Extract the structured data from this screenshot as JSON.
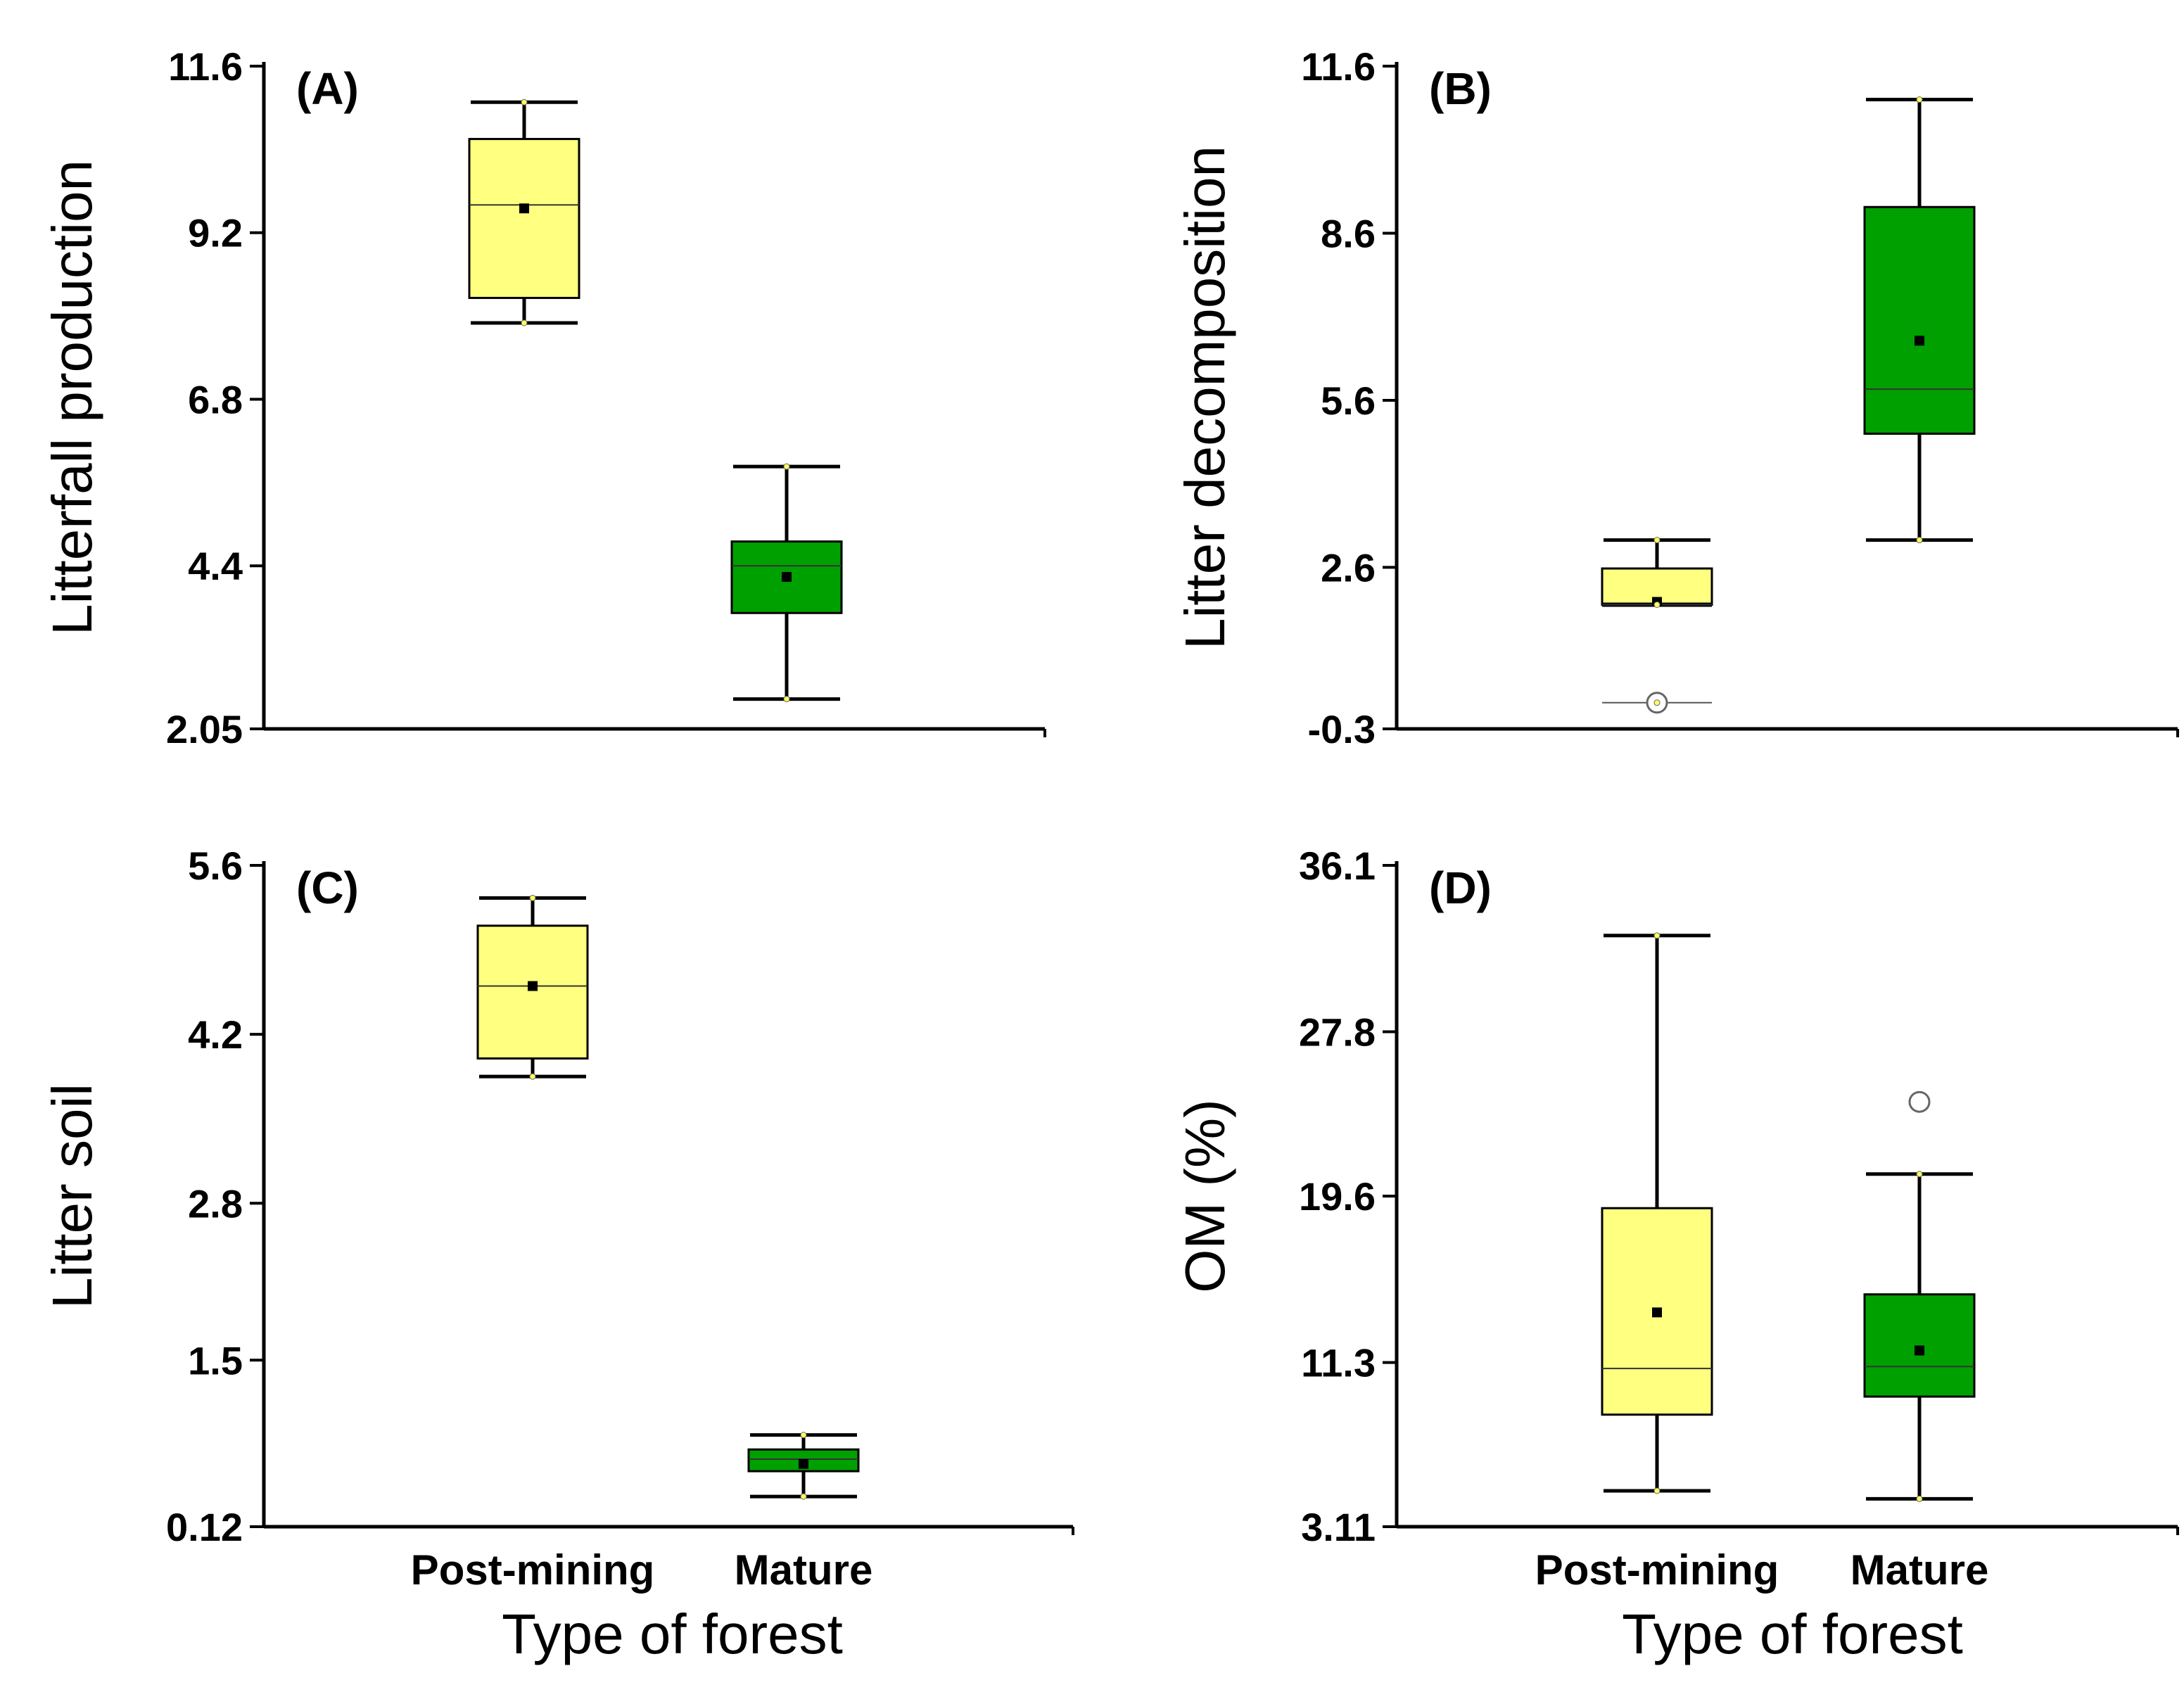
{
  "chart_data": [
    {
      "type": "box",
      "panel": "(A)",
      "title": "",
      "ylabel": "Litterfall production",
      "xlabel": "",
      "categories": [
        "Post-mining",
        "Mature"
      ],
      "show_category_labels": false,
      "ylim": [
        2.05,
        11.6
      ],
      "yticks": [
        2.05,
        4.4,
        6.8,
        9.2,
        11.6
      ],
      "ytick_labels": [
        "2.05",
        "4.4",
        "6.8",
        "9.2",
        "11.6"
      ],
      "boxes": [
        {
          "category": "Post-mining",
          "color": "#ffff80",
          "whisker_low": 7.9,
          "q1": 8.26,
          "median": 9.6,
          "q3": 10.55,
          "whisker_high": 11.08,
          "mean": 9.55,
          "outliers": []
        },
        {
          "category": "Mature",
          "color": "#00a000",
          "whisker_low": 2.48,
          "q1": 3.72,
          "median": 4.4,
          "q3": 4.75,
          "whisker_high": 5.83,
          "mean": 4.24,
          "outliers": []
        }
      ]
    },
    {
      "type": "box",
      "panel": "(B)",
      "title": "",
      "ylabel": "Litter decomposition",
      "xlabel": "",
      "categories": [
        "Post-mining",
        "Mature"
      ],
      "show_category_labels": false,
      "ylim": [
        -0.3,
        11.6
      ],
      "yticks": [
        -0.3,
        2.6,
        5.6,
        8.6,
        11.6
      ],
      "ytick_labels": [
        "-0.3",
        "2.6",
        "5.6",
        "8.6",
        "11.6"
      ],
      "boxes": [
        {
          "category": "Post-mining",
          "color": "#ffff80",
          "whisker_low": 1.93,
          "q1": 1.93,
          "median": 1.93,
          "q3": 2.58,
          "whisker_high": 3.09,
          "mean": 1.98,
          "outliers": [
            0.17
          ]
        },
        {
          "category": "Mature",
          "color": "#00a000",
          "whisker_low": 3.09,
          "q1": 5.0,
          "median": 5.8,
          "q3": 9.07,
          "whisker_high": 11.0,
          "mean": 6.67,
          "outliers": []
        }
      ]
    },
    {
      "type": "box",
      "panel": "(C)",
      "title": "",
      "ylabel": "Litter soil",
      "xlabel": "Type of forest",
      "categories": [
        "Post-mining",
        "Mature"
      ],
      "show_category_labels": true,
      "ylim": [
        0.12,
        5.6
      ],
      "yticks": [
        0.12,
        1.5,
        2.8,
        4.2,
        5.6
      ],
      "ytick_labels": [
        "0.12",
        "1.5",
        "2.8",
        "4.2",
        "5.6"
      ],
      "boxes": [
        {
          "category": "Post-mining",
          "color": "#ffff80",
          "whisker_low": 3.85,
          "q1": 4.0,
          "median": 4.6,
          "q3": 5.1,
          "whisker_high": 5.33,
          "mean": 4.6,
          "outliers": []
        },
        {
          "category": "Mature",
          "color": "#00a000",
          "whisker_low": 0.37,
          "q1": 0.58,
          "median": 0.68,
          "q3": 0.76,
          "whisker_high": 0.88,
          "mean": 0.64,
          "outliers": []
        }
      ]
    },
    {
      "type": "box",
      "panel": "(D)",
      "title": "",
      "ylabel": "OM (%)",
      "xlabel": "Type of forest",
      "categories": [
        "Post-mining",
        "Mature"
      ],
      "show_category_labels": true,
      "ylim": [
        3.11,
        36.1
      ],
      "yticks": [
        3.11,
        11.3,
        19.6,
        27.8,
        36.1
      ],
      "ytick_labels": [
        "3.11",
        "11.3",
        "19.6",
        "27.8",
        "36.1"
      ],
      "boxes": [
        {
          "category": "Post-mining",
          "color": "#ffff80",
          "whisker_low": 4.9,
          "q1": 8.7,
          "median": 11.0,
          "q3": 19.0,
          "whisker_high": 32.6,
          "mean": 13.8,
          "outliers": []
        },
        {
          "category": "Mature",
          "color": "#00a000",
          "whisker_low": 4.5,
          "q1": 9.6,
          "median": 11.1,
          "q3": 14.7,
          "whisker_high": 20.7,
          "mean": 11.9,
          "outliers": [
            24.3
          ]
        }
      ]
    }
  ]
}
